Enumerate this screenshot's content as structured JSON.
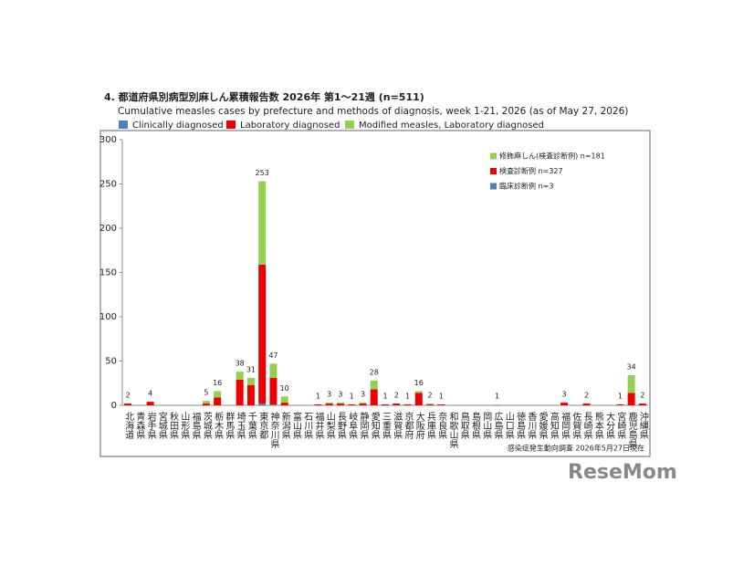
{
  "chart_data": {
    "type": "stacked_bar",
    "title": "4. 都道府県別病型別麻しん累積報告数 2026年 第1～21週 (n=511)",
    "subtitle": "Cumulative measles cases by prefecture and methods of diagnosis, week 1-21, 2026 (as of May 27, 2026)",
    "categories": [
      "北海道",
      "青森県",
      "岩手県",
      "宮城県",
      "秋田県",
      "山形県",
      "福島県",
      "茨城県",
      "栃木県",
      "群馬県",
      "埼玉県",
      "千葉県",
      "東京都",
      "神奈川県",
      "新潟県",
      "富山県",
      "石川県",
      "福井県",
      "山梨県",
      "長野県",
      "岐阜県",
      "静岡県",
      "愛知県",
      "三重県",
      "滋賀県",
      "京都府",
      "大阪府",
      "兵庫県",
      "奈良県",
      "和歌山県",
      "鳥取県",
      "島根県",
      "岡山県",
      "広島県",
      "山口県",
      "徳島県",
      "香川県",
      "愛媛県",
      "高知県",
      "福岡県",
      "佐賀県",
      "長崎県",
      "熊本県",
      "大分県",
      "宮崎県",
      "鹿児島県",
      "沖縄県"
    ],
    "series": [
      {
        "name": "Clinically diagnosed",
        "color": "#4f81bd",
        "values": [
          0,
          0,
          0,
          0,
          0,
          0,
          0,
          0,
          0,
          0,
          0,
          0,
          2,
          1,
          0,
          0,
          0,
          0,
          0,
          0,
          0,
          0,
          0,
          0,
          0,
          0,
          0,
          0,
          0,
          0,
          0,
          0,
          0,
          0,
          0,
          0,
          0,
          0,
          0,
          0,
          0,
          0,
          0,
          0,
          0,
          0,
          0
        ]
      },
      {
        "name": "Laboratory diagnosed",
        "color": "#ee0000",
        "values": [
          2,
          0,
          4,
          0,
          0,
          0,
          0,
          2,
          9,
          0,
          29,
          23,
          157,
          30,
          3,
          0,
          0,
          1,
          2,
          2,
          1,
          2,
          18,
          1,
          2,
          1,
          14,
          1,
          1,
          0,
          0,
          0,
          0,
          0,
          0,
          0,
          0,
          0,
          0,
          3,
          0,
          2,
          0,
          0,
          1,
          14,
          2
        ]
      },
      {
        "name": "Modified measles, Laboratory diagnosed",
        "color": "#92d050",
        "values": [
          0,
          0,
          0,
          0,
          0,
          0,
          0,
          3,
          7,
          0,
          9,
          8,
          94,
          16,
          7,
          0,
          0,
          0,
          1,
          1,
          0,
          1,
          10,
          0,
          0,
          0,
          2,
          1,
          0,
          0,
          0,
          0,
          0,
          1,
          0,
          0,
          0,
          0,
          0,
          0,
          0,
          0,
          0,
          0,
          0,
          20,
          0
        ]
      }
    ],
    "totals": [
      2,
      null,
      4,
      null,
      null,
      null,
      null,
      5,
      16,
      null,
      38,
      31,
      253,
      47,
      10,
      null,
      null,
      1,
      3,
      3,
      1,
      3,
      28,
      1,
      2,
      1,
      16,
      2,
      1,
      null,
      null,
      null,
      null,
      1,
      null,
      null,
      null,
      null,
      null,
      3,
      null,
      2,
      null,
      null,
      1,
      34,
      2
    ],
    "inner_legend": [
      {
        "label": "修飾麻しん(検査診断例) n=181",
        "color": "#92d050"
      },
      {
        "label": "検査診断例 n=327",
        "color": "#ee0000"
      },
      {
        "label": "臨床診断例 n=3",
        "color": "#4f81bd"
      }
    ],
    "ylim": [
      0,
      300
    ],
    "yticks": [
      0,
      50,
      100,
      150,
      200,
      250,
      300
    ],
    "source": "感染症発生動向調査 2026年5月27日現在",
    "watermark": "ReseMom"
  }
}
